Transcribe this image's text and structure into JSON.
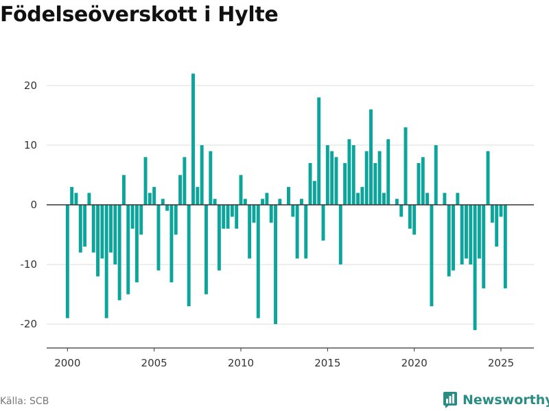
{
  "title": "Födelseöverskott i Hylte",
  "source": "Källa: SCB",
  "brand": "Newsworthy",
  "colors": {
    "bar": "#0ca59b",
    "grid": "#dddddd",
    "zero_line": "#333333",
    "axis": "#333333",
    "brand": "#2a8c82"
  },
  "chart_data": {
    "type": "bar",
    "frequency": "quarterly",
    "x_start": "2000-01",
    "ylim": [
      -24,
      24
    ],
    "xlim": [
      1998.8,
      2026.9
    ],
    "y_ticks": [
      -20,
      -10,
      0,
      10,
      20
    ],
    "x_ticks": [
      2000,
      2005,
      2010,
      2015,
      2020,
      2025
    ],
    "grid": "horizontal",
    "title": "Födelseöverskott i Hylte",
    "values": [
      -19,
      3,
      2,
      -8,
      -7,
      2,
      -8,
      -12,
      -9,
      -19,
      -8,
      -10,
      -16,
      5,
      -15,
      -4,
      -13,
      -5,
      8,
      2,
      3,
      -11,
      1,
      -1,
      -13,
      -5,
      5,
      8,
      -17,
      22,
      3,
      10,
      -15,
      9,
      1,
      -11,
      -4,
      -4,
      -2,
      -4,
      5,
      1,
      -9,
      -3,
      -19,
      1,
      2,
      -3,
      -20,
      1,
      0,
      3,
      -2,
      -9,
      1,
      -9,
      7,
      4,
      18,
      -6,
      10,
      9,
      8,
      -10,
      7,
      11,
      10,
      2,
      3,
      9,
      16,
      7,
      9,
      2,
      11,
      0,
      1,
      -2,
      13,
      -4,
      -5,
      7,
      8,
      2,
      -17,
      10,
      0,
      2,
      -12,
      -11,
      2,
      -10,
      -9,
      -10,
      -21,
      -9,
      -14,
      9,
      -3,
      -7,
      -2,
      -14
    ]
  }
}
